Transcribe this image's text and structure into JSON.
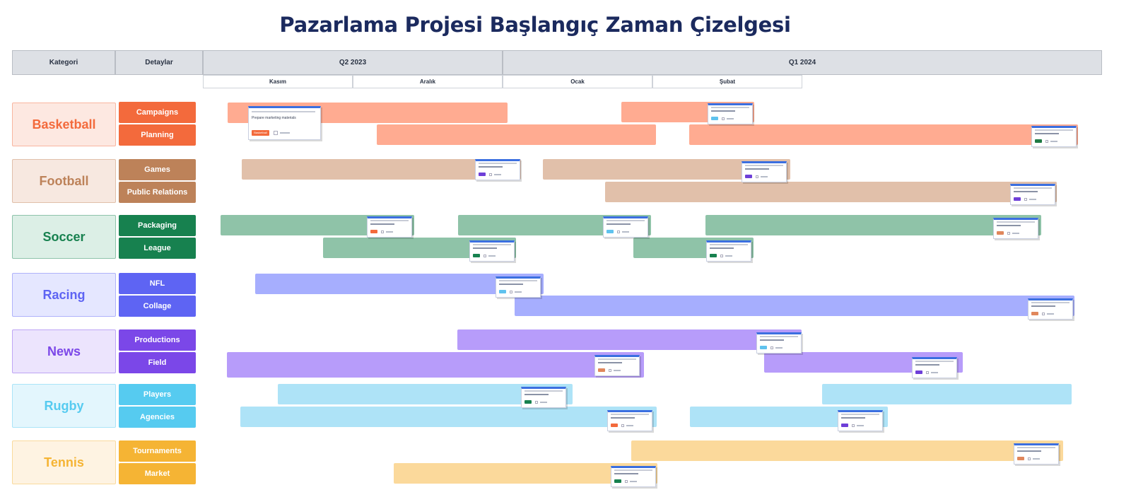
{
  "title": "Pazarlama Projesi Başlangıç Zaman Çizelgesi",
  "header": {
    "category": "Kategori",
    "details": "Detaylar",
    "quarters": [
      "Q2 2023",
      "Q1 2024"
    ],
    "months": [
      "Kasım",
      "Aralık",
      "Ocak",
      "Şubat"
    ]
  },
  "groups": [
    {
      "name": "Basketball",
      "color": "#f36a3c",
      "bg": "#fde8e1",
      "light": "#ffab91",
      "details": [
        "Campaigns",
        "Planning"
      ]
    },
    {
      "name": "Football",
      "color": "#bd8259",
      "bg": "#f7e8e0",
      "light": "#e1c0aa",
      "details": [
        "Games",
        "Public Relations"
      ]
    },
    {
      "name": "Soccer",
      "color": "#17814f",
      "bg": "#dcefe6",
      "light": "#8fc3a8",
      "details": [
        "Packaging",
        "League"
      ]
    },
    {
      "name": "Racing",
      "color": "#5e64f3",
      "bg": "#e5e7ff",
      "light": "#a6aefe",
      "details": [
        "NFL",
        "Collage"
      ]
    },
    {
      "name": "News",
      "color": "#7b47e8",
      "bg": "#ece4fd",
      "light": "#b79cfa",
      "details": [
        "Productions",
        "Field"
      ]
    },
    {
      "name": "Rugby",
      "color": "#56cbf0",
      "bg": "#e3f6fd",
      "light": "#aee3f7",
      "details": [
        "Players",
        "Agencies"
      ]
    },
    {
      "name": "Tennis",
      "color": "#f5b434",
      "bg": "#fef3e2",
      "light": "#fbd99b",
      "details": [
        "Tournaments",
        "Market"
      ]
    }
  ],
  "card_text": {
    "basketball_campaigns_card": "Prepare marketing materials",
    "basketball_campaigns_tag": "Basketball"
  },
  "tag_colors": [
    "#f36a3c",
    "#6e3fd8",
    "#17814f",
    "#5fc2ee",
    "#e0875c",
    "#1f7a44"
  ]
}
